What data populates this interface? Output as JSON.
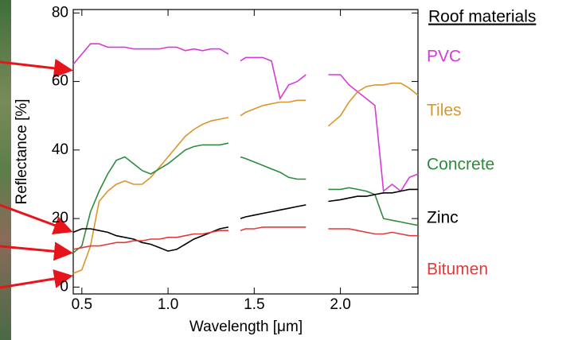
{
  "chart_data": {
    "type": "line",
    "x_label": "Wavelength [μm]",
    "y_label": "Reflectance [%]",
    "legend_title": "Roof materials",
    "legend_position": "right",
    "xlim": [
      0.45,
      2.45
    ],
    "ylim": [
      -2,
      81
    ],
    "xticks": [
      {
        "value": 0.5,
        "label": "0.5"
      },
      {
        "value": 1,
        "label": "1.0"
      },
      1.5,
      {
        "value": 2,
        "label": "2.0"
      }
    ],
    "yticks": [
      0,
      20,
      40,
      60,
      80
    ],
    "x": [
      0.45,
      0.5,
      0.55,
      0.6,
      0.65,
      0.7,
      0.75,
      0.8,
      0.85,
      0.9,
      0.95,
      1.0,
      1.05,
      1.1,
      1.15,
      1.2,
      1.25,
      1.3,
      1.35,
      1.38,
      1.42,
      1.45,
      1.5,
      1.55,
      1.6,
      1.65,
      1.7,
      1.75,
      1.8,
      1.87,
      1.93,
      2.0,
      2.05,
      2.1,
      2.15,
      2.2,
      2.25,
      2.3,
      2.35,
      2.4,
      2.45
    ],
    "series": [
      {
        "name": "PVC",
        "color": "#d63bd6",
        "values": [
          65,
          68,
          71,
          71,
          70,
          70,
          70,
          69.5,
          69.5,
          69.5,
          69.5,
          70,
          70,
          69,
          69.5,
          69,
          69.5,
          69.5,
          68,
          null,
          66,
          67,
          67,
          67,
          66,
          55,
          59,
          60,
          62,
          null,
          62,
          62,
          59,
          57,
          55,
          53,
          28,
          30,
          28,
          32,
          33
        ]
      },
      {
        "name": "Tiles",
        "color": "#d9962a",
        "values": [
          4,
          5,
          12,
          25,
          28,
          30,
          31,
          30,
          30,
          32,
          35,
          38,
          41,
          44,
          46,
          47.5,
          48.5,
          49,
          49.5,
          null,
          50,
          51,
          52,
          53,
          53.5,
          54,
          54,
          54.5,
          54.5,
          null,
          47,
          50,
          54,
          57,
          58.5,
          59,
          59,
          59.5,
          59.5,
          58,
          56
        ]
      },
      {
        "name": "Concrete",
        "color": "#2e8b3e",
        "values": [
          10,
          12,
          22,
          28,
          33,
          37,
          38,
          36,
          34,
          33,
          34.5,
          36,
          38,
          40,
          41,
          41.5,
          41.5,
          41.5,
          42,
          null,
          38,
          37.5,
          36.5,
          35.5,
          34.5,
          33.5,
          32,
          31.5,
          31.5,
          null,
          28.5,
          28.5,
          29,
          28.5,
          28,
          27,
          20,
          19.5,
          19,
          18.5,
          18
        ]
      },
      {
        "name": "Zinc",
        "color": "#000000",
        "values": [
          16,
          17,
          17,
          16.5,
          16,
          15,
          14.5,
          14,
          13,
          12.5,
          11.5,
          10.5,
          11,
          12.5,
          14,
          15,
          16,
          17,
          17.5,
          null,
          20,
          20.5,
          21,
          21.5,
          22,
          22.5,
          23,
          23.5,
          24,
          null,
          25,
          25.5,
          26,
          26.5,
          26.5,
          27,
          27.5,
          27.5,
          28,
          28.5,
          28.5
        ]
      },
      {
        "name": "Bitumen",
        "color": "#e23a3a",
        "values": [
          11,
          11.5,
          12,
          12,
          12.5,
          13,
          13,
          13.5,
          13.5,
          14,
          14,
          14.5,
          14.5,
          15,
          15.5,
          15.5,
          16,
          16.5,
          16.5,
          null,
          16.5,
          17,
          17,
          17.5,
          17.5,
          17.5,
          17.5,
          17.5,
          17.5,
          null,
          17,
          17,
          17,
          16.5,
          16,
          15.5,
          15.5,
          16,
          15.5,
          15,
          15
        ]
      }
    ]
  }
}
